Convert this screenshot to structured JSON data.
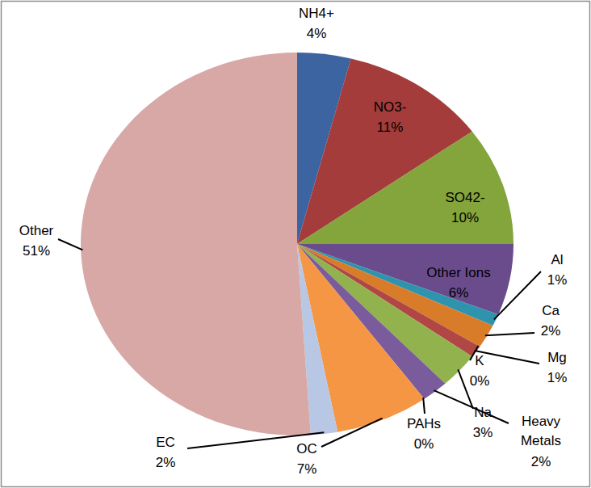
{
  "chart_data": {
    "type": "pie",
    "categories": [
      "NH4+",
      "NO3-",
      "SO42-",
      "Other Ions",
      "Al",
      "Ca",
      "K",
      "Mg",
      "Na",
      "Heavy Metals",
      "PAHs",
      "OC",
      "EC",
      "Other"
    ],
    "values": [
      4,
      11,
      10,
      6,
      1,
      2,
      0,
      1,
      3,
      2,
      0,
      7,
      2,
      51
    ],
    "value_labels": [
      "4%",
      "11%",
      "10%",
      "6%",
      "1%",
      "2%",
      "0%",
      "1%",
      "3%",
      "2%",
      "0%",
      "7%",
      "2%",
      "51%"
    ],
    "colors": [
      "#3c64a0",
      "#a33c3a",
      "#84a43c",
      "#6a4c8c",
      "#2e93ad",
      "#d97c2a",
      "#4a76b0",
      "#b04745",
      "#92b24e",
      "#7a5c9c",
      "#3ba3bf",
      "#f59645",
      "#b7c7e4",
      "#d7a8a6"
    ],
    "data_labels": true
  }
}
